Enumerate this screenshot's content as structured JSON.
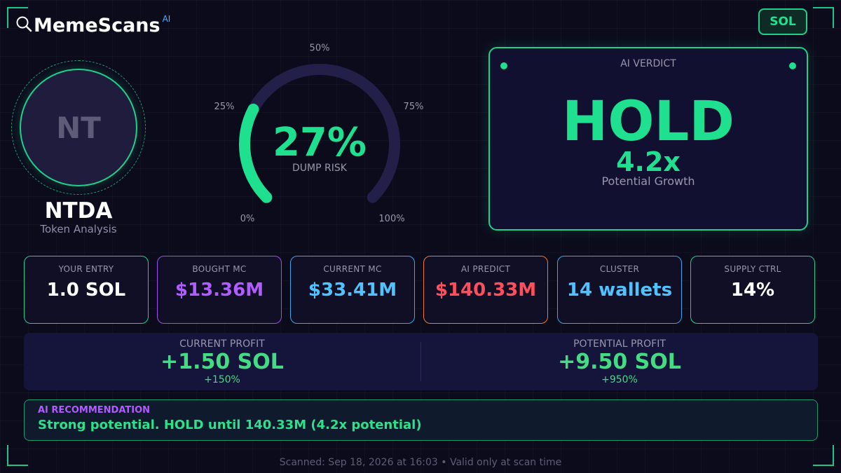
{
  "header": {
    "logo_text": "MemeScans",
    "logo_sup": "AI",
    "logo_icon": "magnifier-icon",
    "chain": "SOL"
  },
  "token": {
    "initials": "NT",
    "name": "NTDA",
    "subtitle": "Token Analysis"
  },
  "gauge": {
    "value": 27,
    "value_text": "27%",
    "label": "DUMP RISK",
    "ticks": [
      "0%",
      "25%",
      "50%",
      "75%",
      "100%"
    ],
    "fill_color": "#1ee08f",
    "track_color": "#221f48"
  },
  "verdict": {
    "title": "AI VERDICT",
    "decision": "HOLD",
    "multiplier": "4.2x",
    "subtitle": "Potential Growth"
  },
  "stats": [
    {
      "label": "YOUR ENTRY",
      "value": "1.0 SOL",
      "color": "#ffffff",
      "border": "#1fd08a"
    },
    {
      "label": "BOUGHT MC",
      "value": "$13.36M",
      "color": "#b05cff",
      "border": "#9d4ff0"
    },
    {
      "label": "CURRENT MC",
      "value": "$33.41M",
      "color": "#4fc3ff",
      "border": "#3aa7e8"
    },
    {
      "label": "AI PREDICT",
      "value": "$140.33M",
      "color": "#ff4f5c",
      "border": "#f07a2b"
    },
    {
      "label": "CLUSTER",
      "value": "14 wallets",
      "color": "#4fc3ff",
      "border": "#3aa7e8"
    },
    {
      "label": "SUPPLY CTRL",
      "value": "14%",
      "color": "#ffffff",
      "border": "#1fd08a"
    }
  ],
  "profit": {
    "current": {
      "label": "CURRENT PROFIT",
      "value": "+1.50 SOL",
      "pct": "+150%"
    },
    "potential": {
      "label": "POTENTIAL PROFIT",
      "value": "+9.50 SOL",
      "pct": "+950%"
    }
  },
  "recommendation": {
    "label": "AI RECOMMENDATION",
    "text": "Strong potential. HOLD until 140.33M (4.2x potential)"
  },
  "footer": "Scanned: Sep 18, 2026 at 16:03  •  Valid only at scan time"
}
